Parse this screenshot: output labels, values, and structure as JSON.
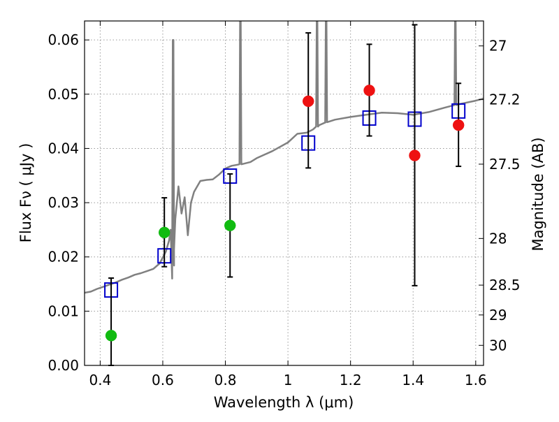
{
  "chart_data": {
    "type": "scatter",
    "title": "",
    "xlabel": "Wavelength  λ (μm)",
    "ylabel": "Flux  Fν  ( μJy )",
    "y2label": "Magnitude (AB)",
    "xlim": [
      0.35,
      1.625
    ],
    "ylim": [
      0.0,
      0.0635
    ],
    "grid": true,
    "x_ticks": [
      0.4,
      0.6,
      0.8,
      1.0,
      1.2,
      1.4,
      1.6
    ],
    "x_tick_labels": [
      "0.4",
      "0.6",
      "0.8",
      "1",
      "1.2",
      "1.4",
      "1.6"
    ],
    "y_ticks": [
      0.0,
      0.01,
      0.02,
      0.03,
      0.04,
      0.05,
      0.06
    ],
    "y_tick_labels": [
      "0.00",
      "0.01",
      "0.02",
      "0.03",
      "0.04",
      "0.05",
      "0.06"
    ],
    "y2_ticks": [
      {
        "label": "27",
        "flux": 0.0589
      },
      {
        "label": "27.2",
        "flux": 0.049
      },
      {
        "label": "27.5",
        "flux": 0.0371
      },
      {
        "label": "28",
        "flux": 0.0234
      },
      {
        "label": "28.5",
        "flux": 0.0148
      },
      {
        "label": "29",
        "flux": 0.0093
      },
      {
        "label": "30",
        "flux": 0.0037
      }
    ],
    "colors": {
      "model_line": "#808080",
      "model_box": "#0000cc",
      "green_points": "#11bb11",
      "red_points": "#ee1111",
      "errorbar": "#000000",
      "grid": "#999999"
    },
    "series": [
      {
        "kind": "line",
        "x": [
          0.35,
          0.37,
          0.39,
          0.41,
          0.43,
          0.45,
          0.47,
          0.49,
          0.51,
          0.53,
          0.55,
          0.57,
          0.59,
          0.61,
          0.62,
          0.625,
          0.63,
          0.635,
          0.64,
          0.65,
          0.66,
          0.67,
          0.68,
          0.69,
          0.7,
          0.72,
          0.74,
          0.76,
          0.78,
          0.8,
          0.82,
          0.84,
          0.86,
          0.88,
          0.9,
          0.95,
          1.0,
          1.03,
          1.06,
          1.08,
          1.1,
          1.12,
          1.15,
          1.2,
          1.25,
          1.3,
          1.35,
          1.4,
          1.45,
          1.5,
          1.55,
          1.6,
          1.625
        ],
        "y": [
          0.0134,
          0.0136,
          0.0141,
          0.0145,
          0.0149,
          0.0153,
          0.0158,
          0.0162,
          0.0167,
          0.017,
          0.0174,
          0.0178,
          0.0188,
          0.021,
          0.023,
          0.025,
          0.016,
          0.02,
          0.027,
          0.033,
          0.028,
          0.031,
          0.024,
          0.03,
          0.032,
          0.034,
          0.0342,
          0.0343,
          0.0352,
          0.0363,
          0.0368,
          0.037,
          0.0372,
          0.0375,
          0.0382,
          0.0395,
          0.0411,
          0.0427,
          0.0429,
          0.0435,
          0.0443,
          0.0448,
          0.0453,
          0.0458,
          0.0462,
          0.0466,
          0.0465,
          0.0462,
          0.0467,
          0.0475,
          0.0482,
          0.0488,
          0.0492
        ],
        "spikes": [
          {
            "x": 0.633,
            "y": 0.06
          },
          {
            "x": 0.848,
            "y": 0.0635
          },
          {
            "x": 1.093,
            "y": 0.0635
          },
          {
            "x": 1.122,
            "y": 0.0635
          },
          {
            "x": 1.535,
            "y": 0.0635
          }
        ]
      },
      {
        "kind": "square",
        "x": [
          0.435,
          0.605,
          0.815,
          1.065,
          1.26,
          1.405,
          1.545
        ],
        "y": [
          0.0139,
          0.0202,
          0.0349,
          0.041,
          0.0456,
          0.0454,
          0.0469
        ]
      },
      {
        "kind": "circle",
        "color": "green",
        "x": [
          0.435,
          0.605,
          0.815
        ],
        "y": [
          0.0055,
          0.0245,
          0.0258
        ],
        "yerr_low": [
          0.0,
          0.0182,
          0.0163
        ],
        "yerr_high": [
          0.0161,
          0.0309,
          0.0353
        ]
      },
      {
        "kind": "circle",
        "color": "red",
        "x": [
          1.065,
          1.26,
          1.405,
          1.545
        ],
        "y": [
          0.0487,
          0.0507,
          0.0387,
          0.0443
        ],
        "yerr_low": [
          0.0364,
          0.0423,
          0.0147,
          0.0367
        ],
        "yerr_high": [
          0.0613,
          0.0592,
          0.0628,
          0.052
        ]
      }
    ]
  }
}
